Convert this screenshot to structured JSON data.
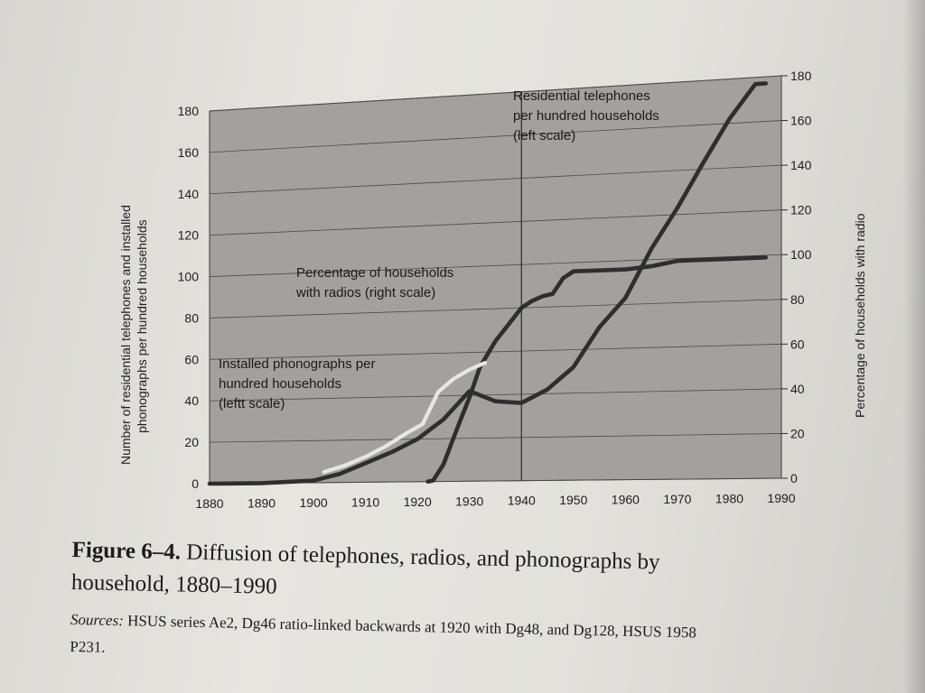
{
  "chart_data": {
    "type": "line",
    "x_ticks": [
      1880,
      1890,
      1900,
      1910,
      1920,
      1930,
      1940,
      1950,
      1960,
      1970,
      1980,
      1990
    ],
    "xlim": [
      1880,
      1990
    ],
    "y_left": {
      "label_line1": "Number of residential telephones and installed",
      "label_line2": "phonographs per hundred households",
      "ticks": [
        0,
        20,
        40,
        60,
        80,
        100,
        120,
        140,
        160,
        180
      ],
      "lim": [
        0,
        180
      ]
    },
    "y_right": {
      "label": "Percentage of households with radio",
      "ticks": [
        0,
        20,
        40,
        60,
        80,
        100,
        120,
        140,
        160,
        180
      ],
      "lim": [
        0,
        180
      ]
    },
    "reference_line_x": 1940,
    "series": [
      {
        "name": "Residential telephones per hundred households (left scale)",
        "axis": "left",
        "color": "#2e2e2e",
        "x": [
          1880,
          1890,
          1900,
          1905,
          1910,
          1915,
          1920,
          1925,
          1930,
          1935,
          1940,
          1945,
          1950,
          1955,
          1960,
          1965,
          1970,
          1975,
          1980,
          1985,
          1987
        ],
        "y": [
          0,
          0,
          1,
          4,
          9,
          14,
          20,
          29,
          42,
          37,
          36,
          42,
          52,
          70,
          83,
          105,
          123,
          143,
          162,
          177,
          177
        ]
      },
      {
        "name": "Percentage of households with radios (right scale)",
        "axis": "right",
        "color": "#2e2e2e",
        "x": [
          1922,
          1923,
          1925,
          1928,
          1930,
          1932,
          1935,
          1938,
          1940,
          1942,
          1944,
          1946,
          1948,
          1950,
          1955,
          1960,
          1965,
          1970,
          1975,
          1980,
          1987
        ],
        "y": [
          0,
          0.5,
          8,
          27,
          39,
          53,
          65,
          74,
          80,
          83,
          85,
          86,
          93,
          96,
          96,
          96,
          97,
          99,
          99,
          99,
          99
        ]
      },
      {
        "name": "Installed phonographs per hundred households (leftt scale)",
        "axis": "left",
        "color": "#e6e6e4",
        "x": [
          1902,
          1906,
          1910,
          1914,
          1918,
          1921,
          1924,
          1927,
          1930,
          1933
        ],
        "y": [
          5,
          8,
          12,
          17,
          23,
          27,
          42,
          48,
          52,
          55
        ]
      }
    ]
  },
  "annotations": {
    "telephones_line1": "Residential telephones",
    "telephones_line2": "per hundred households",
    "telephones_line3": "(left scale)",
    "radios_line1": "Percentage of households",
    "radios_line2": "with radios (right scale)",
    "phonographs_line1": "Installed phonographs per",
    "phonographs_line2": "hundred households",
    "phonographs_line3": "(leftt scale)"
  },
  "caption": {
    "figure_label": "Figure 6–4.",
    "title_part1": "Diffusion of telephones, radios, and phonographs by",
    "title_part2": "household, 1880–1990",
    "sources_label": "Sources:",
    "sources_text": "HSUS series Ae2, Dg46 ratio-linked backwards at 1920 with Dg48, and Dg128, HSUS 1958",
    "sources_text2": "P231."
  },
  "colors": {
    "plot_background": "#a2a19e",
    "gridline": "#4a4a48",
    "ink": "#1e1e1e",
    "phonograph_line": "#e6e6e4"
  }
}
